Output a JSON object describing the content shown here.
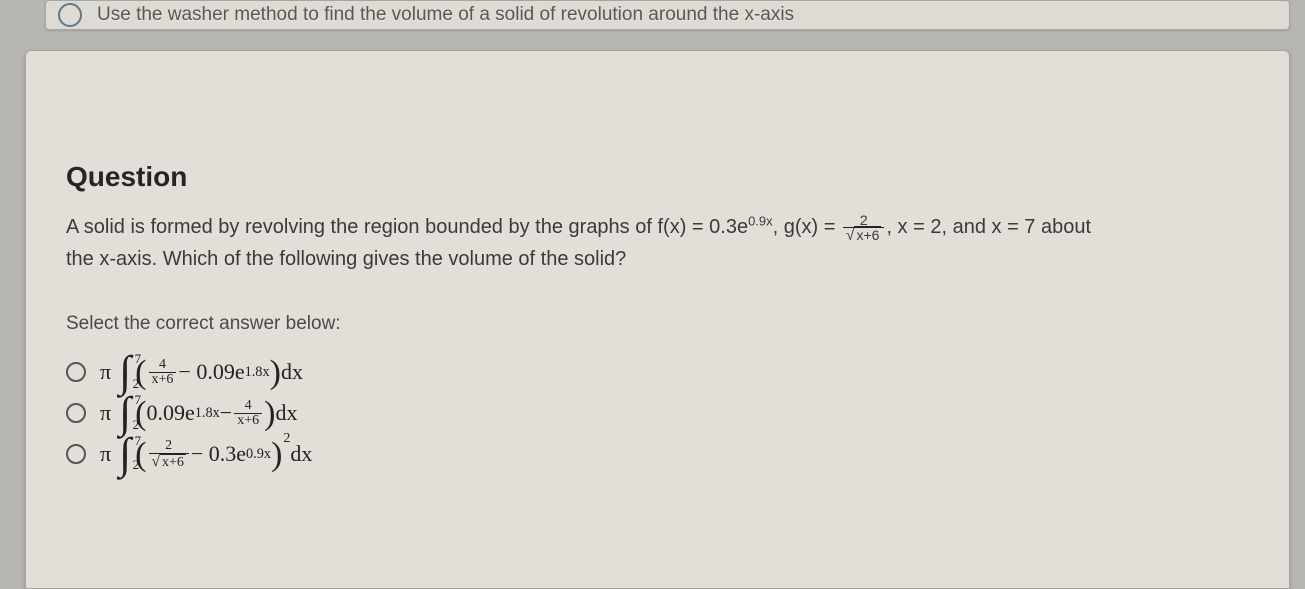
{
  "topbar": {
    "text": "Use the washer method to find the volume of a solid of revolution around the x-axis"
  },
  "question": {
    "title": "Question",
    "body_prefix": "A solid is formed by revolving the region bounded by the graphs of f(x) = 0.3e",
    "f_exp": "0.9x",
    "g_prefix": ", g(x) = ",
    "g_num": "2",
    "g_den_inner": "x+6",
    "bounds": ", x = 2, and x = 7 about",
    "body_line2": "the x-axis. Which of the following gives the volume of the solid?",
    "select": "Select the correct answer below:"
  },
  "options": {
    "pi": "π",
    "int_sym": "∫",
    "ub": "7",
    "lb": "2",
    "dx": " dx",
    "a": {
      "frac_num": "4",
      "frac_den": "x+6",
      "minus": " − 0.09e",
      "exp": "1.8x"
    },
    "b": {
      "lead": "0.09e",
      "exp": "1.8x",
      "minus": " − ",
      "frac_num": "4",
      "frac_den": "x+6"
    },
    "c": {
      "frac_num": "2",
      "frac_den_inner": "x+6",
      "minus": " − 0.3e",
      "exp": "0.9x",
      "power": "2"
    }
  }
}
